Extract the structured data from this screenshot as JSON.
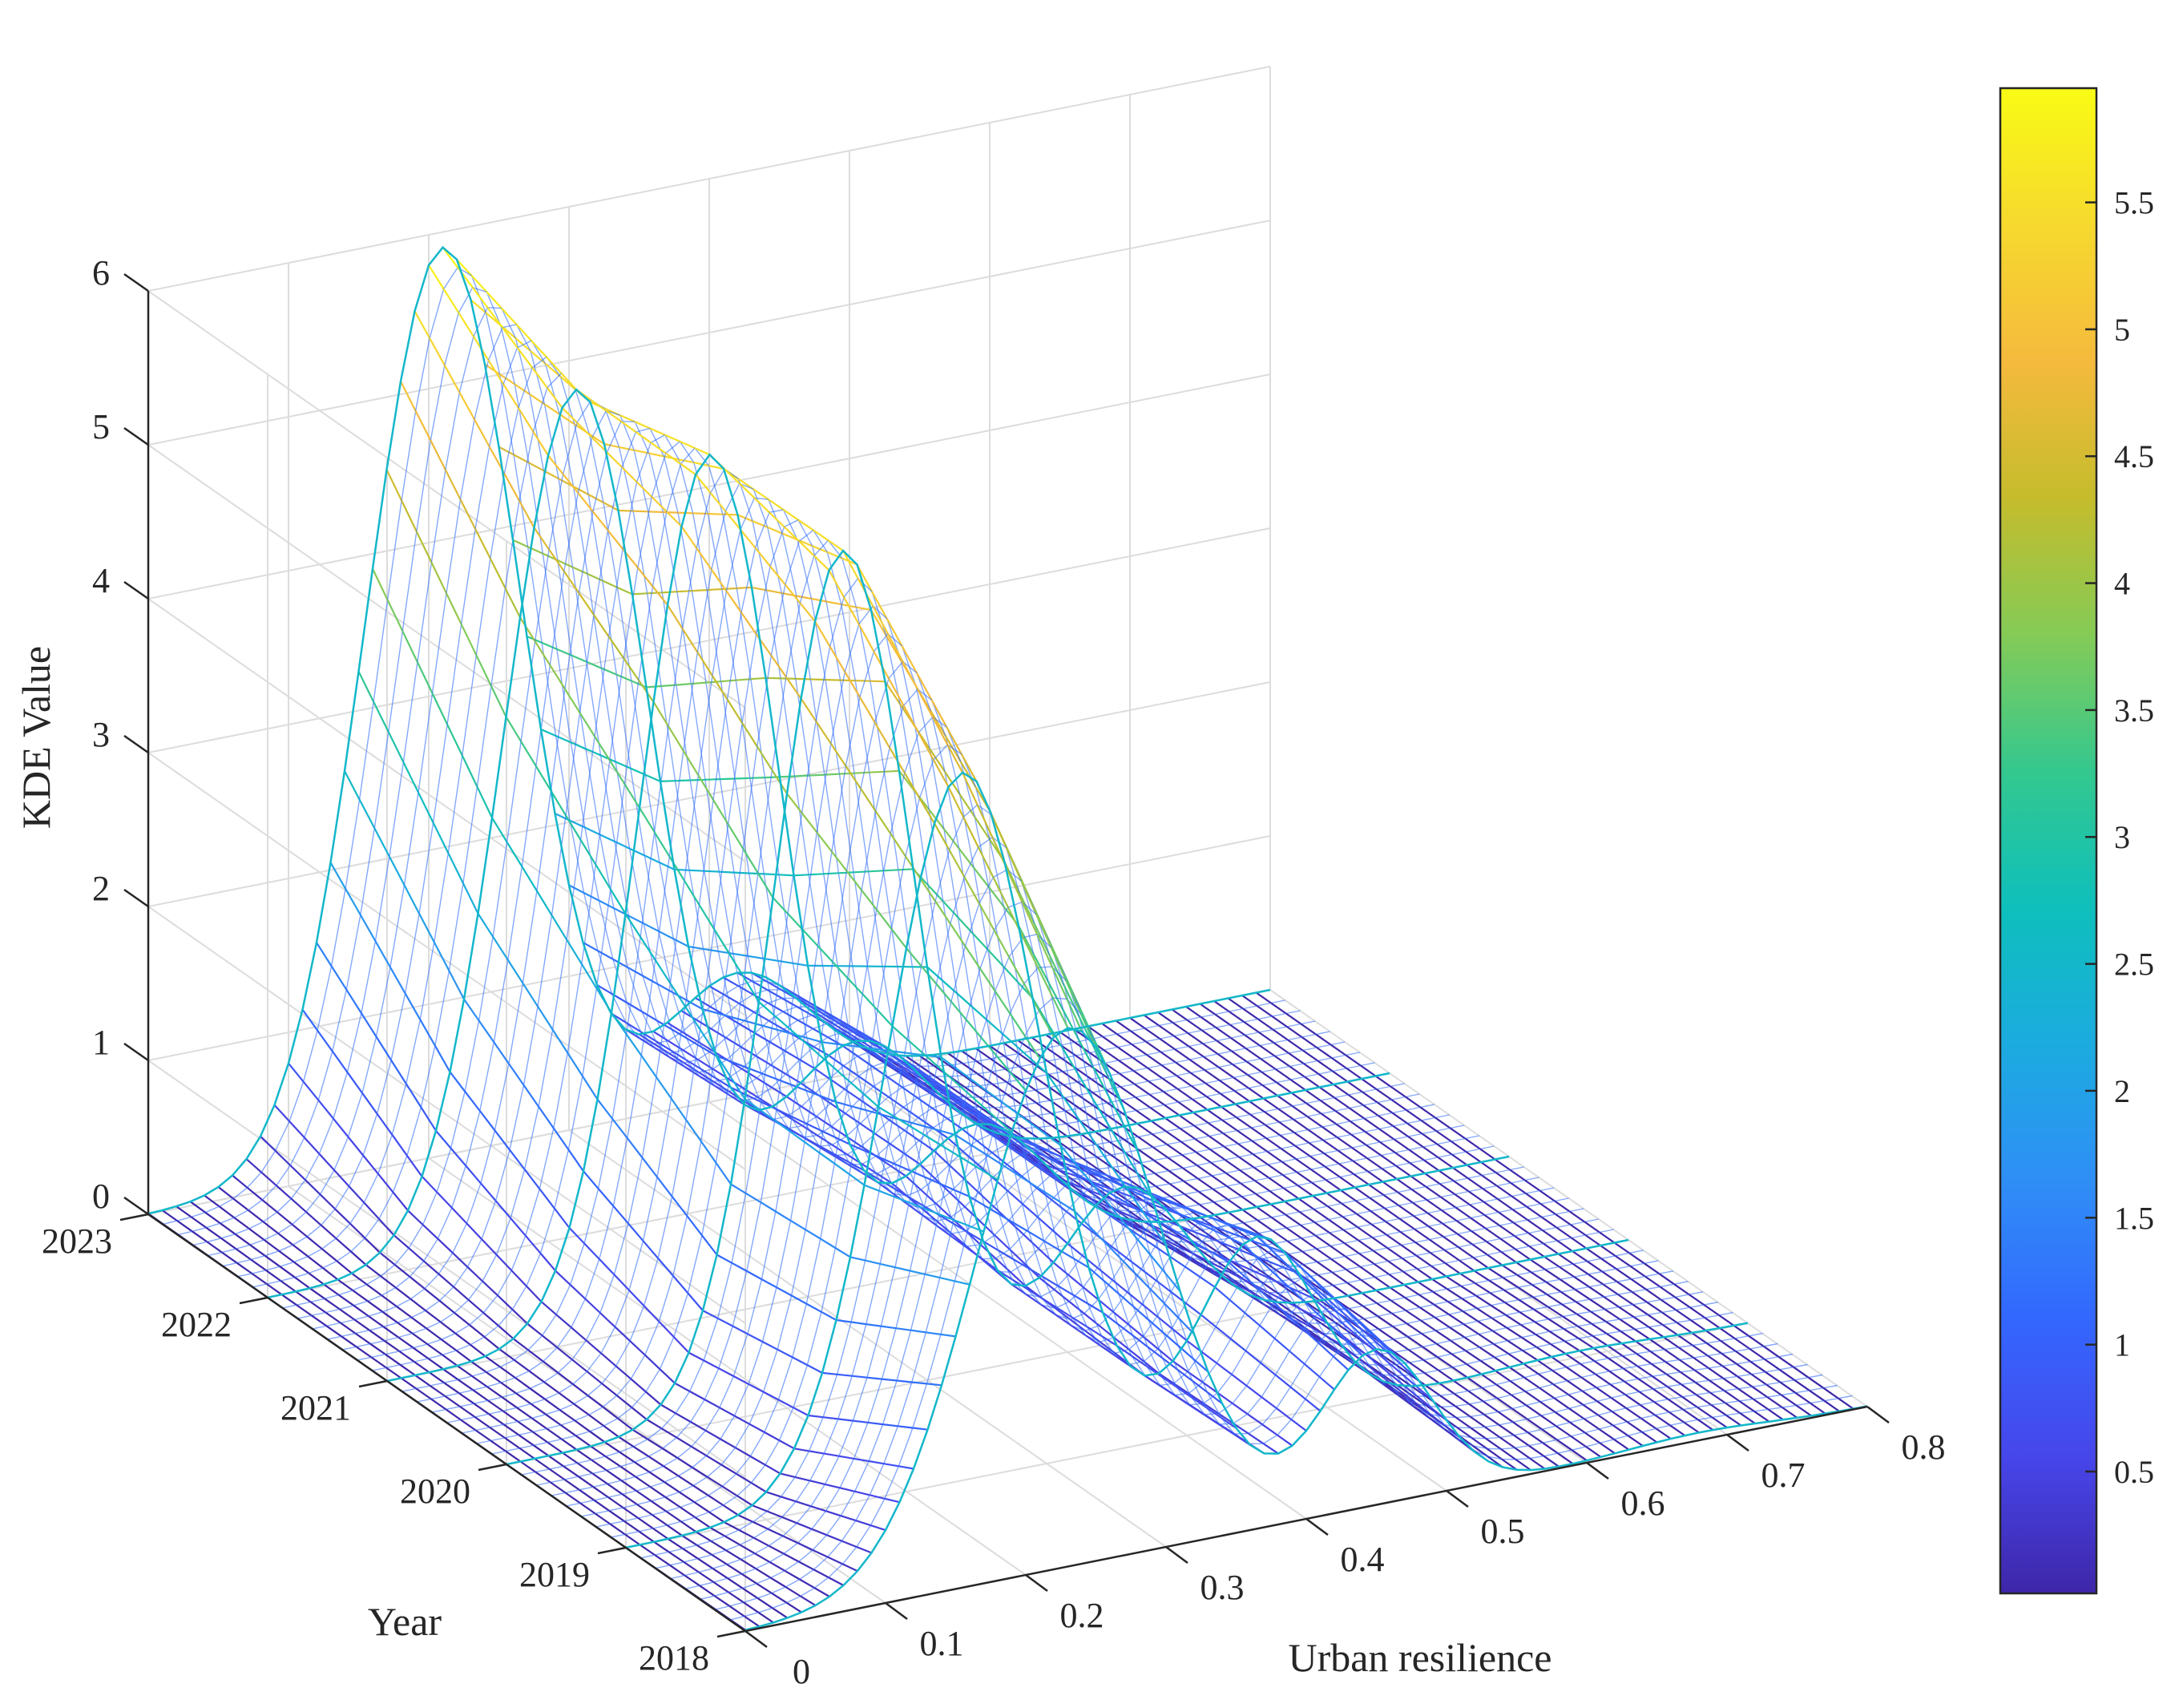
{
  "chart_data": {
    "type": "surface-mesh",
    "zlabel": "KDE Value",
    "xlabel": "Urban resilience",
    "ylabel": "Year",
    "x_ticks": [
      "0",
      "0.1",
      "0.2",
      "0.3",
      "0.4",
      "0.5",
      "0.6",
      "0.7",
      "0.8"
    ],
    "y_ticks": [
      "2018",
      "2019",
      "2020",
      "2021",
      "2022",
      "2023"
    ],
    "z_ticks": [
      "0",
      "1",
      "2",
      "3",
      "4",
      "5",
      "6"
    ],
    "xlim": [
      0,
      0.8
    ],
    "ylim": [
      2018,
      2023
    ],
    "zlim": [
      0,
      6
    ],
    "grid": true,
    "colormap": "parula",
    "colorbar": {
      "ticks": [
        "0.5",
        "1",
        "1.5",
        "2",
        "2.5",
        "3",
        "3.5",
        "4",
        "4.5",
        "5",
        "5.5"
      ],
      "range": [
        0.02,
        5.95
      ],
      "colors": [
        "#3e26a8",
        "#4746eb",
        "#3367fe",
        "#2f8ef6",
        "#1cabe0",
        "#0ebfbc",
        "#33c88f",
        "#84cb57",
        "#c5bc2c",
        "#f5ba3d",
        "#f6d92e",
        "#f9fb15"
      ]
    },
    "series": [
      {
        "year": 2018,
        "peaks": [
          {
            "x": 0.23,
            "height": 3.5,
            "width": 0.065
          },
          {
            "x": 0.45,
            "height": 1.0,
            "width": 0.04
          },
          {
            "x": 0.68,
            "height": 0.05,
            "width": 0.05
          }
        ]
      },
      {
        "year": 2019,
        "peaks": [
          {
            "x": 0.24,
            "height": 4.6,
            "width": 0.055
          },
          {
            "x": 0.45,
            "height": 1.2,
            "width": 0.04
          },
          {
            "x": 0.68,
            "height": 0.04,
            "width": 0.05
          }
        ]
      },
      {
        "year": 2020,
        "peaks": [
          {
            "x": 0.24,
            "height": 5.5,
            "width": 0.05
          },
          {
            "x": 0.44,
            "height": 1.0,
            "width": 0.045
          }
        ]
      },
      {
        "year": 2021,
        "peaks": [
          {
            "x": 0.23,
            "height": 5.6,
            "width": 0.05
          },
          {
            "x": 0.42,
            "height": 0.9,
            "width": 0.05
          }
        ]
      },
      {
        "year": 2022,
        "peaks": [
          {
            "x": 0.22,
            "height": 5.5,
            "width": 0.052
          },
          {
            "x": 0.42,
            "height": 0.9,
            "width": 0.05
          }
        ]
      },
      {
        "year": 2023,
        "peaks": [
          {
            "x": 0.21,
            "height": 5.9,
            "width": 0.055
          },
          {
            "x": 0.42,
            "height": 0.8,
            "width": 0.05
          }
        ]
      }
    ]
  }
}
